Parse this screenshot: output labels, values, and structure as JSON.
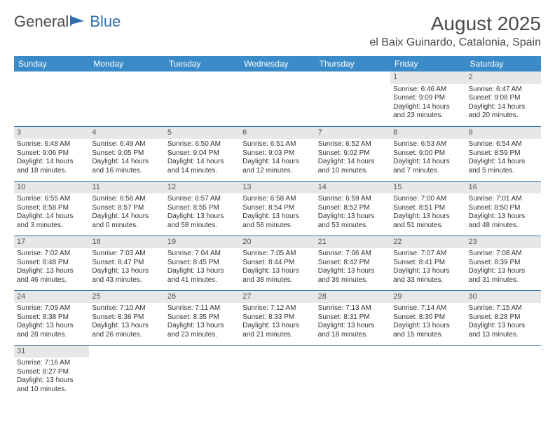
{
  "logo": {
    "text_general": "General",
    "text_blue": "Blue"
  },
  "header": {
    "month_title": "August 2025",
    "location": "el Baix Guinardo, Catalonia, Spain"
  },
  "colors": {
    "header_bg": "#3b8bc9",
    "header_text": "#ffffff",
    "cell_border": "#2f6fb0",
    "daynum_bg": "#e7e7e7",
    "body_text": "#333333",
    "title_text": "#4a4a4a",
    "logo_blue": "#2f6fb0"
  },
  "typography": {
    "month_title_fontsize": 28,
    "location_fontsize": 16,
    "dayheader_fontsize": 12,
    "daynum_fontsize": 11,
    "cell_fontsize": 10,
    "font_family": "Arial"
  },
  "calendar": {
    "type": "table",
    "day_headers": [
      "Sunday",
      "Monday",
      "Tuesday",
      "Wednesday",
      "Thursday",
      "Friday",
      "Saturday"
    ],
    "weeks": [
      [
        null,
        null,
        null,
        null,
        null,
        {
          "n": "1",
          "sunrise": "Sunrise: 6:46 AM",
          "sunset": "Sunset: 9:09 PM",
          "day1": "Daylight: 14 hours",
          "day2": "and 23 minutes."
        },
        {
          "n": "2",
          "sunrise": "Sunrise: 6:47 AM",
          "sunset": "Sunset: 9:08 PM",
          "day1": "Daylight: 14 hours",
          "day2": "and 20 minutes."
        }
      ],
      [
        {
          "n": "3",
          "sunrise": "Sunrise: 6:48 AM",
          "sunset": "Sunset: 9:06 PM",
          "day1": "Daylight: 14 hours",
          "day2": "and 18 minutes."
        },
        {
          "n": "4",
          "sunrise": "Sunrise: 6:49 AM",
          "sunset": "Sunset: 9:05 PM",
          "day1": "Daylight: 14 hours",
          "day2": "and 16 minutes."
        },
        {
          "n": "5",
          "sunrise": "Sunrise: 6:50 AM",
          "sunset": "Sunset: 9:04 PM",
          "day1": "Daylight: 14 hours",
          "day2": "and 14 minutes."
        },
        {
          "n": "6",
          "sunrise": "Sunrise: 6:51 AM",
          "sunset": "Sunset: 9:03 PM",
          "day1": "Daylight: 14 hours",
          "day2": "and 12 minutes."
        },
        {
          "n": "7",
          "sunrise": "Sunrise: 6:52 AM",
          "sunset": "Sunset: 9:02 PM",
          "day1": "Daylight: 14 hours",
          "day2": "and 10 minutes."
        },
        {
          "n": "8",
          "sunrise": "Sunrise: 6:53 AM",
          "sunset": "Sunset: 9:00 PM",
          "day1": "Daylight: 14 hours",
          "day2": "and 7 minutes."
        },
        {
          "n": "9",
          "sunrise": "Sunrise: 6:54 AM",
          "sunset": "Sunset: 8:59 PM",
          "day1": "Daylight: 14 hours",
          "day2": "and 5 minutes."
        }
      ],
      [
        {
          "n": "10",
          "sunrise": "Sunrise: 6:55 AM",
          "sunset": "Sunset: 8:58 PM",
          "day1": "Daylight: 14 hours",
          "day2": "and 3 minutes."
        },
        {
          "n": "11",
          "sunrise": "Sunrise: 6:56 AM",
          "sunset": "Sunset: 8:57 PM",
          "day1": "Daylight: 14 hours",
          "day2": "and 0 minutes."
        },
        {
          "n": "12",
          "sunrise": "Sunrise: 6:57 AM",
          "sunset": "Sunset: 8:55 PM",
          "day1": "Daylight: 13 hours",
          "day2": "and 58 minutes."
        },
        {
          "n": "13",
          "sunrise": "Sunrise: 6:58 AM",
          "sunset": "Sunset: 8:54 PM",
          "day1": "Daylight: 13 hours",
          "day2": "and 56 minutes."
        },
        {
          "n": "14",
          "sunrise": "Sunrise: 6:59 AM",
          "sunset": "Sunset: 8:52 PM",
          "day1": "Daylight: 13 hours",
          "day2": "and 53 minutes."
        },
        {
          "n": "15",
          "sunrise": "Sunrise: 7:00 AM",
          "sunset": "Sunset: 8:51 PM",
          "day1": "Daylight: 13 hours",
          "day2": "and 51 minutes."
        },
        {
          "n": "16",
          "sunrise": "Sunrise: 7:01 AM",
          "sunset": "Sunset: 8:50 PM",
          "day1": "Daylight: 13 hours",
          "day2": "and 48 minutes."
        }
      ],
      [
        {
          "n": "17",
          "sunrise": "Sunrise: 7:02 AM",
          "sunset": "Sunset: 8:48 PM",
          "day1": "Daylight: 13 hours",
          "day2": "and 46 minutes."
        },
        {
          "n": "18",
          "sunrise": "Sunrise: 7:03 AM",
          "sunset": "Sunset: 8:47 PM",
          "day1": "Daylight: 13 hours",
          "day2": "and 43 minutes."
        },
        {
          "n": "19",
          "sunrise": "Sunrise: 7:04 AM",
          "sunset": "Sunset: 8:45 PM",
          "day1": "Daylight: 13 hours",
          "day2": "and 41 minutes."
        },
        {
          "n": "20",
          "sunrise": "Sunrise: 7:05 AM",
          "sunset": "Sunset: 8:44 PM",
          "day1": "Daylight: 13 hours",
          "day2": "and 38 minutes."
        },
        {
          "n": "21",
          "sunrise": "Sunrise: 7:06 AM",
          "sunset": "Sunset: 8:42 PM",
          "day1": "Daylight: 13 hours",
          "day2": "and 36 minutes."
        },
        {
          "n": "22",
          "sunrise": "Sunrise: 7:07 AM",
          "sunset": "Sunset: 8:41 PM",
          "day1": "Daylight: 13 hours",
          "day2": "and 33 minutes."
        },
        {
          "n": "23",
          "sunrise": "Sunrise: 7:08 AM",
          "sunset": "Sunset: 8:39 PM",
          "day1": "Daylight: 13 hours",
          "day2": "and 31 minutes."
        }
      ],
      [
        {
          "n": "24",
          "sunrise": "Sunrise: 7:09 AM",
          "sunset": "Sunset: 8:38 PM",
          "day1": "Daylight: 13 hours",
          "day2": "and 28 minutes."
        },
        {
          "n": "25",
          "sunrise": "Sunrise: 7:10 AM",
          "sunset": "Sunset: 8:36 PM",
          "day1": "Daylight: 13 hours",
          "day2": "and 26 minutes."
        },
        {
          "n": "26",
          "sunrise": "Sunrise: 7:11 AM",
          "sunset": "Sunset: 8:35 PM",
          "day1": "Daylight: 13 hours",
          "day2": "and 23 minutes."
        },
        {
          "n": "27",
          "sunrise": "Sunrise: 7:12 AM",
          "sunset": "Sunset: 8:33 PM",
          "day1": "Daylight: 13 hours",
          "day2": "and 21 minutes."
        },
        {
          "n": "28",
          "sunrise": "Sunrise: 7:13 AM",
          "sunset": "Sunset: 8:31 PM",
          "day1": "Daylight: 13 hours",
          "day2": "and 18 minutes."
        },
        {
          "n": "29",
          "sunrise": "Sunrise: 7:14 AM",
          "sunset": "Sunset: 8:30 PM",
          "day1": "Daylight: 13 hours",
          "day2": "and 15 minutes."
        },
        {
          "n": "30",
          "sunrise": "Sunrise: 7:15 AM",
          "sunset": "Sunset: 8:28 PM",
          "day1": "Daylight: 13 hours",
          "day2": "and 13 minutes."
        }
      ],
      [
        {
          "n": "31",
          "sunrise": "Sunrise: 7:16 AM",
          "sunset": "Sunset: 8:27 PM",
          "day1": "Daylight: 13 hours",
          "day2": "and 10 minutes."
        },
        null,
        null,
        null,
        null,
        null,
        null
      ]
    ]
  }
}
